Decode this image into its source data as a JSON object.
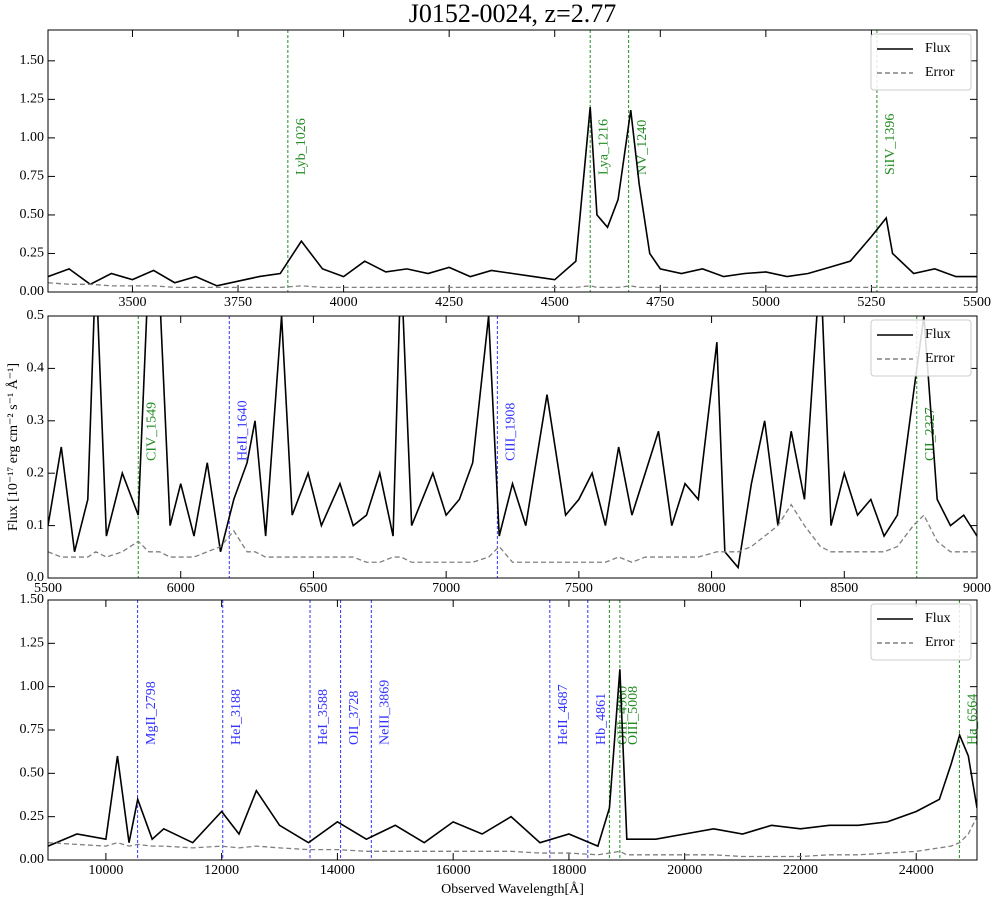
{
  "chart_data": [
    {
      "type": "line",
      "title": "J0152-0024, z=2.77",
      "legend": "upper right",
      "linestyles": [
        "solid",
        "dashed"
      ],
      "x": [
        3300,
        3350,
        3400,
        3450,
        3500,
        3550,
        3600,
        3650,
        3700,
        3750,
        3800,
        3850,
        3900,
        3950,
        4000,
        4050,
        4100,
        4150,
        4200,
        4250,
        4300,
        4350,
        4400,
        4450,
        4500,
        4550,
        4584,
        4600,
        4625,
        4650,
        4680,
        4700,
        4725,
        4750,
        4800,
        4850,
        4900,
        4950,
        5000,
        5050,
        5100,
        5150,
        5200,
        5250,
        5285,
        5300,
        5350,
        5400,
        5450,
        5500
      ],
      "series": [
        {
          "name": "Flux",
          "color": "#000000",
          "values": [
            0.1,
            0.15,
            0.05,
            0.12,
            0.08,
            0.14,
            0.06,
            0.1,
            0.04,
            0.07,
            0.1,
            0.12,
            0.33,
            0.15,
            0.1,
            0.2,
            0.13,
            0.15,
            0.12,
            0.16,
            0.1,
            0.14,
            0.12,
            0.1,
            0.08,
            0.2,
            1.2,
            0.5,
            0.42,
            0.6,
            1.18,
            0.7,
            0.25,
            0.15,
            0.12,
            0.15,
            0.1,
            0.12,
            0.13,
            0.1,
            0.12,
            0.16,
            0.2,
            0.36,
            0.48,
            0.25,
            0.12,
            0.15,
            0.1,
            0.1
          ]
        },
        {
          "name": "Error",
          "color": "#808080",
          "values": [
            0.06,
            0.05,
            0.05,
            0.04,
            0.04,
            0.04,
            0.03,
            0.03,
            0.03,
            0.03,
            0.03,
            0.03,
            0.04,
            0.03,
            0.03,
            0.03,
            0.03,
            0.03,
            0.03,
            0.03,
            0.03,
            0.03,
            0.03,
            0.03,
            0.03,
            0.03,
            0.04,
            0.03,
            0.03,
            0.03,
            0.04,
            0.03,
            0.03,
            0.03,
            0.03,
            0.03,
            0.03,
            0.03,
            0.03,
            0.03,
            0.03,
            0.03,
            0.03,
            0.03,
            0.03,
            0.03,
            0.03,
            0.03,
            0.03,
            0.03
          ]
        }
      ],
      "xlim": [
        3300,
        5500
      ],
      "xticks": [
        3500,
        3750,
        4000,
        4250,
        4500,
        4750,
        5000,
        5250,
        5500
      ],
      "ylim": [
        0,
        1.7
      ],
      "yticks": [
        {
          "value": 0,
          "label": "0.00"
        },
        0.25,
        {
          "value": 0.5,
          "label": "0.50"
        },
        0.75,
        {
          "value": 1,
          "label": "1.00"
        },
        1.25,
        {
          "value": 1.5,
          "label": "1.50"
        }
      ],
      "lines": [
        {
          "label": "Lyb_1026",
          "x": 3868,
          "color": "#228b22"
        },
        {
          "label": "Lya_1216",
          "x": 4584,
          "color": "#228b22"
        },
        {
          "label": "NV_1240",
          "x": 4675,
          "color": "#228b22"
        },
        {
          "label": "SiIV_1396",
          "x": 5263,
          "color": "#228b22"
        }
      ]
    },
    {
      "type": "line",
      "ylabel": "Flux [10⁻¹⁷ erg cm⁻² s⁻¹ Å⁻¹]",
      "legend": "upper right",
      "linestyles": [
        "solid",
        "dashed"
      ],
      "x": [
        5500,
        5550,
        5600,
        5650,
        5680,
        5720,
        5780,
        5840,
        5880,
        5920,
        5960,
        6000,
        6050,
        6100,
        6150,
        6200,
        6250,
        6280,
        6320,
        6380,
        6420,
        6480,
        6530,
        6600,
        6650,
        6700,
        6750,
        6800,
        6830,
        6870,
        6950,
        7000,
        7050,
        7100,
        7160,
        7200,
        7250,
        7300,
        7380,
        7450,
        7500,
        7550,
        7600,
        7650,
        7700,
        7750,
        7800,
        7850,
        7900,
        7950,
        8020,
        8050,
        8100,
        8150,
        8200,
        8250,
        8300,
        8350,
        8410,
        8450,
        8500,
        8550,
        8600,
        8650,
        8700,
        8760,
        8800,
        8850,
        8900,
        8950,
        9000
      ],
      "series": [
        {
          "name": "Flux",
          "color": "#000000",
          "values": [
            0.1,
            0.25,
            0.05,
            0.15,
            0.6,
            0.08,
            0.2,
            0.12,
            0.6,
            0.55,
            0.1,
            0.18,
            0.08,
            0.22,
            0.05,
            0.15,
            0.22,
            0.3,
            0.08,
            0.5,
            0.12,
            0.2,
            0.1,
            0.18,
            0.1,
            0.12,
            0.2,
            0.08,
            0.6,
            0.1,
            0.2,
            0.12,
            0.15,
            0.22,
            0.5,
            0.08,
            0.18,
            0.1,
            0.35,
            0.12,
            0.15,
            0.2,
            0.1,
            0.25,
            0.12,
            0.2,
            0.28,
            0.1,
            0.18,
            0.15,
            0.45,
            0.05,
            0.02,
            0.18,
            0.3,
            0.1,
            0.28,
            0.15,
            0.6,
            0.1,
            0.2,
            0.12,
            0.15,
            0.08,
            0.12,
            0.35,
            0.5,
            0.15,
            0.1,
            0.12,
            0.08
          ]
        },
        {
          "name": "Error",
          "color": "#808080",
          "values": [
            0.05,
            0.04,
            0.04,
            0.04,
            0.05,
            0.04,
            0.05,
            0.07,
            0.05,
            0.05,
            0.04,
            0.04,
            0.04,
            0.05,
            0.06,
            0.09,
            0.05,
            0.05,
            0.04,
            0.04,
            0.04,
            0.04,
            0.04,
            0.04,
            0.04,
            0.03,
            0.03,
            0.04,
            0.04,
            0.03,
            0.03,
            0.03,
            0.03,
            0.03,
            0.04,
            0.06,
            0.03,
            0.03,
            0.03,
            0.03,
            0.03,
            0.03,
            0.03,
            0.04,
            0.03,
            0.04,
            0.04,
            0.04,
            0.04,
            0.04,
            0.05,
            0.05,
            0.05,
            0.06,
            0.08,
            0.1,
            0.14,
            0.1,
            0.06,
            0.05,
            0.05,
            0.05,
            0.05,
            0.05,
            0.06,
            0.1,
            0.12,
            0.07,
            0.05,
            0.05,
            0.05
          ]
        }
      ],
      "xlim": [
        5500,
        9000
      ],
      "xticks": [
        5500,
        6000,
        6500,
        7000,
        7500,
        8000,
        8500,
        9000
      ],
      "ylim": [
        0,
        0.5
      ],
      "yticks": [
        {
          "value": 0,
          "label": "0.0"
        },
        0.1,
        0.2,
        0.3,
        0.4,
        0.5
      ],
      "lines": [
        {
          "label": "CIV_1549",
          "x": 5840,
          "color": "#228b22"
        },
        {
          "label": "HeII_1640",
          "x": 6183,
          "color": "#3333ff"
        },
        {
          "label": "CIII_1908",
          "x": 7193,
          "color": "#3333ff"
        },
        {
          "label": "CII_2327",
          "x": 8773,
          "color": "#228b22"
        }
      ]
    },
    {
      "type": "line",
      "xlabel": "Observed Wavelength[Å]",
      "legend": "upper right",
      "linestyles": [
        "solid",
        "dashed"
      ],
      "x": [
        9000,
        9500,
        10000,
        10200,
        10400,
        10550,
        10800,
        11000,
        11500,
        12000,
        12300,
        12600,
        13000,
        13500,
        14000,
        14500,
        15000,
        15500,
        16000,
        16500,
        17000,
        17500,
        18000,
        18500,
        18700,
        18880,
        19000,
        19500,
        20000,
        20500,
        21000,
        21500,
        22000,
        22500,
        23000,
        23500,
        24000,
        24400,
        24600,
        24750,
        24900,
        25050
      ],
      "series": [
        {
          "name": "Flux",
          "color": "#000000",
          "values": [
            0.08,
            0.15,
            0.12,
            0.6,
            0.1,
            0.35,
            0.12,
            0.18,
            0.1,
            0.28,
            0.15,
            0.4,
            0.2,
            0.1,
            0.22,
            0.12,
            0.2,
            0.1,
            0.22,
            0.15,
            0.25,
            0.1,
            0.15,
            0.08,
            0.3,
            1.1,
            0.12,
            0.12,
            0.15,
            0.18,
            0.15,
            0.2,
            0.18,
            0.2,
            0.2,
            0.22,
            0.28,
            0.35,
            0.55,
            0.72,
            0.6,
            0.3
          ]
        },
        {
          "name": "Error",
          "color": "#808080",
          "values": [
            0.1,
            0.09,
            0.08,
            0.1,
            0.08,
            0.09,
            0.08,
            0.08,
            0.07,
            0.08,
            0.07,
            0.08,
            0.07,
            0.06,
            0.06,
            0.05,
            0.05,
            0.05,
            0.05,
            0.05,
            0.05,
            0.04,
            0.04,
            0.03,
            0.04,
            0.05,
            0.03,
            0.03,
            0.03,
            0.03,
            0.02,
            0.02,
            0.02,
            0.03,
            0.03,
            0.04,
            0.05,
            0.07,
            0.08,
            0.1,
            0.15,
            0.25
          ]
        }
      ],
      "xlim": [
        9000,
        25050
      ],
      "xticks": [
        10000,
        12000,
        14000,
        16000,
        18000,
        20000,
        22000,
        24000
      ],
      "ylim": [
        0,
        1.5
      ],
      "yticks": [
        {
          "value": 0,
          "label": "0.00"
        },
        0.25,
        {
          "value": 0.5,
          "label": "0.50"
        },
        0.75,
        {
          "value": 1,
          "label": "1.00"
        },
        1.25,
        {
          "value": 1.5,
          "label": "1.50"
        }
      ],
      "lines": [
        {
          "label": "MgII_2798",
          "x": 10548,
          "color": "#3333ff"
        },
        {
          "label": "HeI_3188",
          "x": 12019,
          "color": "#3333ff"
        },
        {
          "label": "HeI_3588",
          "x": 13527,
          "color": "#3333ff"
        },
        {
          "label": "OII_3728",
          "x": 14055,
          "color": "#3333ff"
        },
        {
          "label": "NeIII_3869",
          "x": 14586,
          "color": "#3333ff"
        },
        {
          "label": "HeII_4687",
          "x": 17670,
          "color": "#3333ff"
        },
        {
          "label": "Hb_4861",
          "x": 18326,
          "color": "#3333ff"
        },
        {
          "label": "OIII_4960",
          "x": 18699,
          "color": "#228b22"
        },
        {
          "label": "OIII_5008",
          "x": 18880,
          "color": "#228b22"
        },
        {
          "label": "Ha_6564",
          "x": 24746,
          "color": "#228b22"
        }
      ]
    }
  ]
}
